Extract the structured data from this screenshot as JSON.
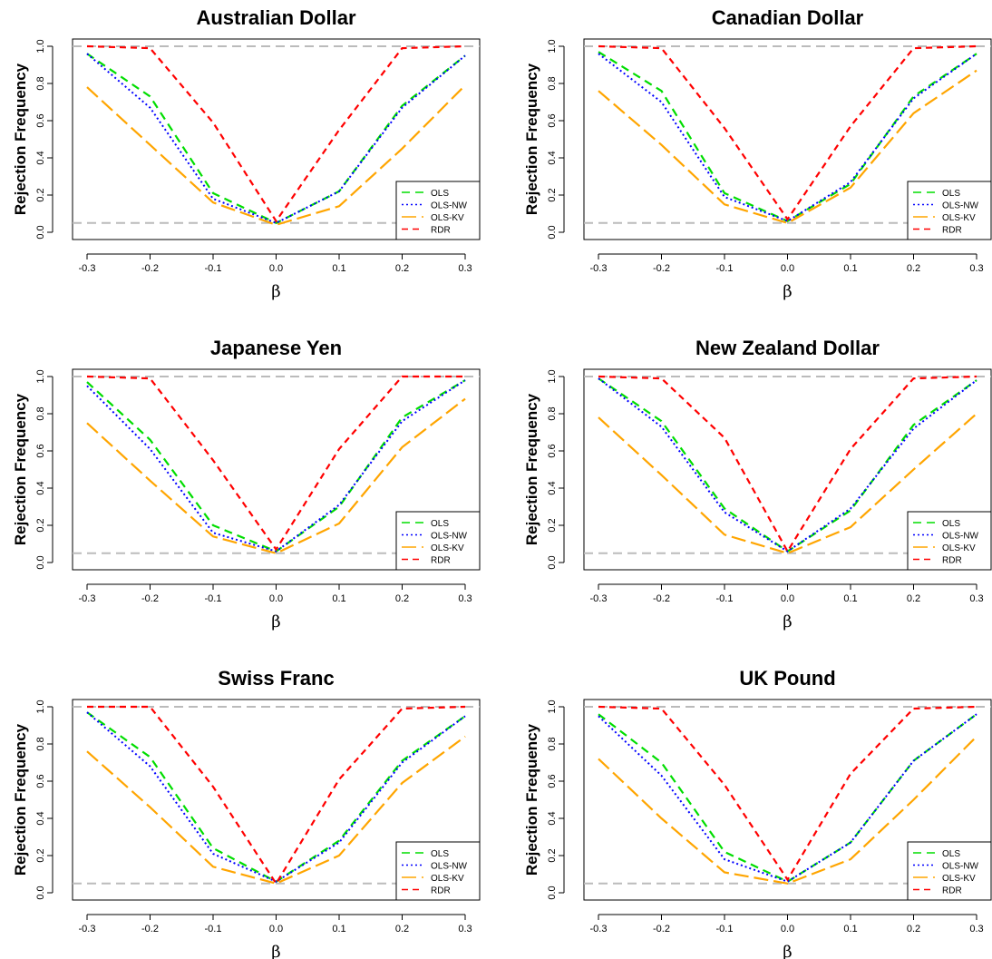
{
  "chart_data": [
    {
      "type": "line",
      "title": "Australian Dollar",
      "xlabel": "β",
      "ylabel": "Rejection Frequency",
      "x": [
        -0.3,
        -0.2,
        -0.1,
        0.0,
        0.1,
        0.2,
        0.3
      ],
      "xticks": [
        "-0.3",
        "-0.2",
        "-0.1",
        "0.0",
        "0.1",
        "0.2",
        "0.3"
      ],
      "yticks": [
        "0.0",
        "0.2",
        "0.4",
        "0.6",
        "0.8",
        "1.0"
      ],
      "xlim": [
        -0.3,
        0.3
      ],
      "ylim": [
        0,
        1
      ],
      "reference_lines": [
        0.05,
        1.0
      ],
      "legend_position": "bottom-right",
      "series": [
        {
          "name": "OLS",
          "color": "#00dd00",
          "values": [
            0.96,
            0.73,
            0.21,
            0.05,
            0.22,
            0.68,
            0.95
          ]
        },
        {
          "name": "OLS-NW",
          "color": "#0000ff",
          "values": [
            0.96,
            0.67,
            0.18,
            0.05,
            0.22,
            0.67,
            0.95
          ]
        },
        {
          "name": "OLS-KV",
          "color": "#ffa500",
          "values": [
            0.78,
            0.47,
            0.16,
            0.04,
            0.14,
            0.45,
            0.79
          ]
        },
        {
          "name": "RDR",
          "color": "#ff0000",
          "values": [
            1.0,
            0.99,
            0.59,
            0.06,
            0.55,
            0.99,
            1.0
          ]
        }
      ]
    },
    {
      "type": "line",
      "title": "Canadian Dollar",
      "xlabel": "β",
      "ylabel": "Rejection Frequency",
      "x": [
        -0.3,
        -0.2,
        -0.1,
        0.0,
        0.1,
        0.2,
        0.3
      ],
      "xticks": [
        "-0.3",
        "-0.2",
        "-0.1",
        "0.0",
        "0.1",
        "0.2",
        "0.3"
      ],
      "yticks": [
        "0.0",
        "0.2",
        "0.4",
        "0.6",
        "0.8",
        "1.0"
      ],
      "xlim": [
        -0.3,
        0.3
      ],
      "ylim": [
        0,
        1
      ],
      "reference_lines": [
        0.05,
        1.0
      ],
      "legend_position": "bottom-right",
      "series": [
        {
          "name": "OLS",
          "color": "#00dd00",
          "values": [
            0.97,
            0.76,
            0.21,
            0.06,
            0.26,
            0.73,
            0.96
          ]
        },
        {
          "name": "OLS-NW",
          "color": "#0000ff",
          "values": [
            0.96,
            0.7,
            0.19,
            0.06,
            0.27,
            0.72,
            0.96
          ]
        },
        {
          "name": "OLS-KV",
          "color": "#ffa500",
          "values": [
            0.76,
            0.47,
            0.15,
            0.05,
            0.24,
            0.64,
            0.87
          ]
        },
        {
          "name": "RDR",
          "color": "#ff0000",
          "values": [
            1.0,
            0.99,
            0.56,
            0.07,
            0.57,
            0.99,
            1.0
          ]
        }
      ]
    },
    {
      "type": "line",
      "title": "Japanese Yen",
      "xlabel": "β",
      "ylabel": "Rejection Frequency",
      "x": [
        -0.3,
        -0.2,
        -0.1,
        0.0,
        0.1,
        0.2,
        0.3
      ],
      "xticks": [
        "-0.3",
        "-0.2",
        "-0.1",
        "0.0",
        "0.1",
        "0.2",
        "0.3"
      ],
      "yticks": [
        "0.0",
        "0.2",
        "0.4",
        "0.6",
        "0.8",
        "1.0"
      ],
      "xlim": [
        -0.3,
        0.3
      ],
      "ylim": [
        0,
        1
      ],
      "reference_lines": [
        0.05,
        1.0
      ],
      "legend_position": "bottom-right",
      "series": [
        {
          "name": "OLS",
          "color": "#00dd00",
          "values": [
            0.97,
            0.66,
            0.2,
            0.06,
            0.3,
            0.78,
            0.98
          ]
        },
        {
          "name": "OLS-NW",
          "color": "#0000ff",
          "values": [
            0.95,
            0.61,
            0.16,
            0.06,
            0.31,
            0.76,
            0.98
          ]
        },
        {
          "name": "OLS-KV",
          "color": "#ffa500",
          "values": [
            0.75,
            0.44,
            0.14,
            0.05,
            0.21,
            0.62,
            0.88
          ]
        },
        {
          "name": "RDR",
          "color": "#ff0000",
          "values": [
            1.0,
            0.99,
            0.55,
            0.07,
            0.61,
            1.0,
            1.0
          ]
        }
      ]
    },
    {
      "type": "line",
      "title": "New Zealand Dollar",
      "xlabel": "β",
      "ylabel": "Rejection Frequency",
      "x": [
        -0.3,
        -0.2,
        -0.1,
        0.0,
        0.1,
        0.2,
        0.3
      ],
      "xticks": [
        "-0.3",
        "-0.2",
        "-0.1",
        "0.0",
        "0.1",
        "0.2",
        "0.3"
      ],
      "yticks": [
        "0.0",
        "0.2",
        "0.4",
        "0.6",
        "0.8",
        "1.0"
      ],
      "xlim": [
        -0.3,
        0.3
      ],
      "ylim": [
        0,
        1
      ],
      "reference_lines": [
        0.05,
        1.0
      ],
      "legend_position": "bottom-right",
      "series": [
        {
          "name": "OLS",
          "color": "#00dd00",
          "values": [
            0.99,
            0.76,
            0.29,
            0.06,
            0.28,
            0.74,
            0.98
          ]
        },
        {
          "name": "OLS-NW",
          "color": "#0000ff",
          "values": [
            0.99,
            0.73,
            0.27,
            0.06,
            0.29,
            0.72,
            0.98
          ]
        },
        {
          "name": "OLS-KV",
          "color": "#ffa500",
          "values": [
            0.78,
            0.47,
            0.15,
            0.05,
            0.19,
            0.5,
            0.8
          ]
        },
        {
          "name": "RDR",
          "color": "#ff0000",
          "values": [
            1.0,
            0.99,
            0.67,
            0.06,
            0.61,
            0.99,
            1.0
          ]
        }
      ]
    },
    {
      "type": "line",
      "title": "Swiss Franc",
      "xlabel": "β",
      "ylabel": "Rejection Frequency",
      "x": [
        -0.3,
        -0.2,
        -0.1,
        0.0,
        0.1,
        0.2,
        0.3
      ],
      "xticks": [
        "-0.3",
        "-0.2",
        "-0.1",
        "0.0",
        "0.1",
        "0.2",
        "0.3"
      ],
      "yticks": [
        "0.0",
        "0.2",
        "0.4",
        "0.6",
        "0.8",
        "1.0"
      ],
      "xlim": [
        -0.3,
        0.3
      ],
      "ylim": [
        0,
        1
      ],
      "reference_lines": [
        0.05,
        1.0
      ],
      "legend_position": "bottom-right",
      "series": [
        {
          "name": "OLS",
          "color": "#00dd00",
          "values": [
            0.97,
            0.73,
            0.24,
            0.06,
            0.28,
            0.71,
            0.95
          ]
        },
        {
          "name": "OLS-NW",
          "color": "#0000ff",
          "values": [
            0.97,
            0.68,
            0.21,
            0.06,
            0.27,
            0.7,
            0.95
          ]
        },
        {
          "name": "OLS-KV",
          "color": "#ffa500",
          "values": [
            0.76,
            0.46,
            0.14,
            0.05,
            0.2,
            0.59,
            0.84
          ]
        },
        {
          "name": "RDR",
          "color": "#ff0000",
          "values": [
            1.0,
            1.0,
            0.57,
            0.05,
            0.61,
            0.99,
            1.0
          ]
        }
      ]
    },
    {
      "type": "line",
      "title": "UK Pound",
      "xlabel": "β",
      "ylabel": "Rejection Frequency",
      "x": [
        -0.3,
        -0.2,
        -0.1,
        0.0,
        0.1,
        0.2,
        0.3
      ],
      "xticks": [
        "-0.3",
        "-0.2",
        "-0.1",
        "0.0",
        "0.1",
        "0.2",
        "0.3"
      ],
      "yticks": [
        "0.0",
        "0.2",
        "0.4",
        "0.6",
        "0.8",
        "1.0"
      ],
      "xlim": [
        -0.3,
        0.3
      ],
      "ylim": [
        0,
        1
      ],
      "reference_lines": [
        0.05,
        1.0
      ],
      "legend_position": "bottom-right",
      "series": [
        {
          "name": "OLS",
          "color": "#00dd00",
          "values": [
            0.96,
            0.7,
            0.22,
            0.06,
            0.27,
            0.71,
            0.96
          ]
        },
        {
          "name": "OLS-NW",
          "color": "#0000ff",
          "values": [
            0.95,
            0.63,
            0.18,
            0.06,
            0.27,
            0.71,
            0.96
          ]
        },
        {
          "name": "OLS-KV",
          "color": "#ffa500",
          "values": [
            0.72,
            0.4,
            0.11,
            0.05,
            0.18,
            0.5,
            0.84
          ]
        },
        {
          "name": "RDR",
          "color": "#ff0000",
          "values": [
            1.0,
            0.99,
            0.58,
            0.07,
            0.64,
            0.99,
            1.0
          ]
        }
      ]
    }
  ]
}
